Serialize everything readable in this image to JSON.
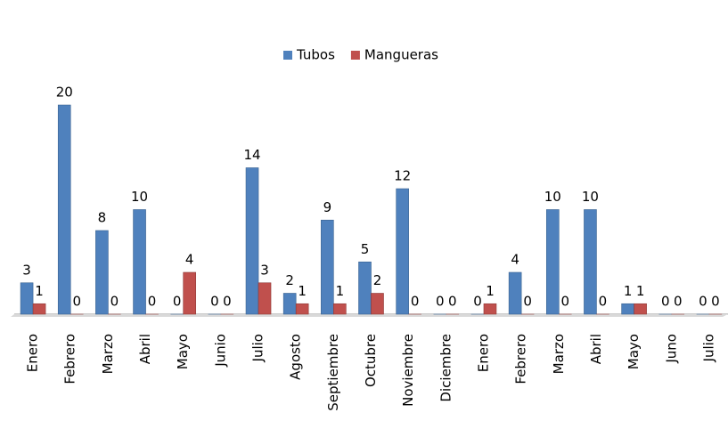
{
  "chart_data": {
    "type": "bar",
    "categories": [
      "Enero",
      "Febrero",
      "Marzo",
      "Abril",
      "Mayo",
      "Junio",
      "Julio",
      "Agosto",
      "Septiembre",
      "Octubre",
      "Noviembre",
      "Diciembre",
      "Enero",
      "Febrero",
      "Marzo",
      "Abril",
      "Mayo",
      "Juno",
      "Julio"
    ],
    "series": [
      {
        "name": "Tubos",
        "color": "#4f81bd",
        "values": [
          3,
          20,
          8,
          10,
          0,
          0,
          14,
          2,
          9,
          5,
          12,
          0,
          0,
          4,
          10,
          10,
          1,
          0,
          0
        ]
      },
      {
        "name": "Mangueras",
        "color": "#c0504d",
        "values": [
          1,
          0,
          0,
          0,
          4,
          0,
          3,
          1,
          1,
          2,
          0,
          0,
          1,
          0,
          0,
          0,
          1,
          0,
          0
        ]
      }
    ],
    "legend": "top"
  }
}
